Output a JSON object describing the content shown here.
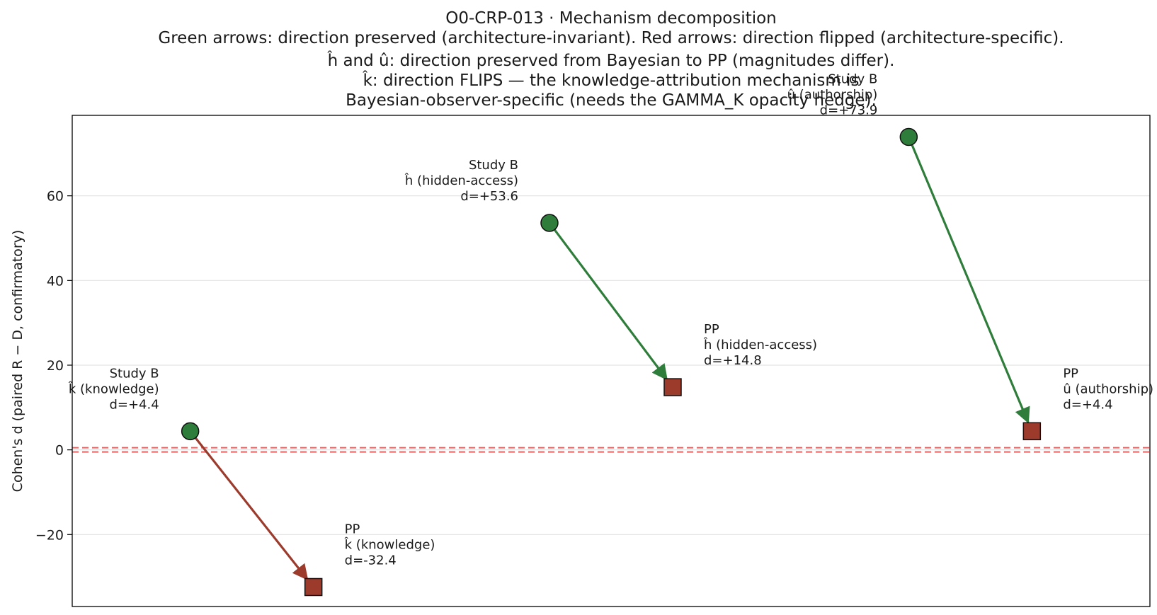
{
  "chart_data": {
    "type": "scatter",
    "title": "O0-CRP-013 · Mechanism decomposition",
    "subtitle_lines": [
      "Green arrows: direction preserved (architecture-invariant). Red arrows: direction flipped (architecture-specific).",
      "ĥ and û: direction preserved from Bayesian to PP (magnitudes differ).",
      "k̂: direction FLIPS — the knowledge-attribution mechanism is",
      "Bayesian-observer-specific (needs the GAMMA_K opacity hedge)."
    ],
    "ylabel": "Cohen's d (paired R − D, confirmatory)",
    "ylim": [
      -37,
      79
    ],
    "yticks": [
      -20,
      0,
      20,
      40,
      60
    ],
    "ytick_labels": [
      "−20",
      "0",
      "20",
      "40",
      "60"
    ],
    "grid": "horizontal",
    "reference_line": {
      "y": 0,
      "style": "dashed",
      "color": "#e06666"
    },
    "colors": {
      "preserved": "#2e7d3a",
      "flipped": "#9c3a2c",
      "study_b_marker": "#2e7d3a",
      "pp_marker": "#9c3a2c"
    },
    "mechanisms": [
      {
        "name": "k̂ (knowledge)",
        "direction": "flipped",
        "study_b": {
          "label_lines": [
            "Study B",
            "k̂ (knowledge)",
            "d=+4.4"
          ],
          "d": 4.4
        },
        "pp": {
          "label_lines": [
            "PP",
            "k̂ (knowledge)",
            "d=-32.4"
          ],
          "d": -32.4
        }
      },
      {
        "name": "ĥ (hidden-access)",
        "direction": "preserved",
        "study_b": {
          "label_lines": [
            "Study B",
            "ĥ (hidden-access)",
            "d=+53.6"
          ],
          "d": 53.6
        },
        "pp": {
          "label_lines": [
            "PP",
            "ĥ (hidden-access)",
            "d=+14.8"
          ],
          "d": 14.8
        }
      },
      {
        "name": "û (authorship)",
        "direction": "preserved",
        "study_b": {
          "label_lines": [
            "Study B",
            "û (authorship)",
            "d=+73.9"
          ],
          "d": 73.9
        },
        "pp": {
          "label_lines": [
            "PP",
            "û (authorship)",
            "d=+4.4"
          ],
          "d": 4.4
        }
      }
    ]
  }
}
